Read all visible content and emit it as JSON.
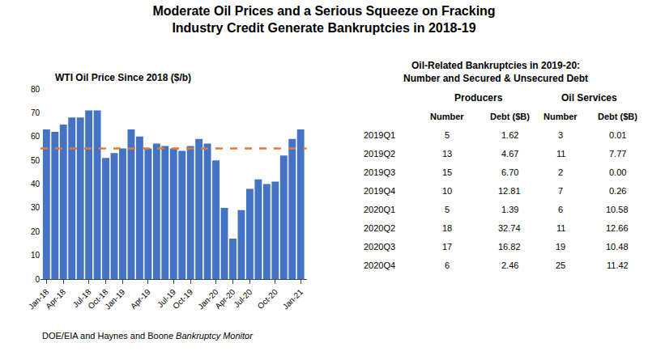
{
  "title": "Moderate Oil Prices and a Serious Squeeze on Fracking\nIndustry Credit Generate Bankruptcies in 2018-19",
  "source": [
    "DOE/EIA and Haynes and Boone",
    "Bankruptcy Monitor"
  ],
  "chart_data": [
    {
      "type": "bar",
      "title": "WTI Oil Price Since 2018 ($/b)",
      "categories": [
        "Jan-18",
        null,
        "Apr-18",
        null,
        null,
        "Jul-18",
        null,
        "Oct-18",
        null,
        "Jan-19",
        null,
        null,
        "Apr-19",
        null,
        null,
        "Jul-19",
        null,
        "Oct-19",
        null,
        null,
        "Jan-20",
        null,
        "Apr-20",
        null,
        "Jul-20",
        null,
        null,
        "Oct-20",
        null,
        null,
        "Jan-21"
      ],
      "values": [
        63,
        62,
        65,
        68,
        68,
        71,
        71,
        51,
        53,
        55,
        63,
        60,
        55,
        57,
        56,
        55,
        54,
        56,
        59,
        57,
        50,
        30,
        17,
        29,
        38,
        42,
        40,
        41,
        52,
        59,
        63
      ],
      "color": "#4472C4",
      "ylim": [
        0,
        80
      ],
      "yticks": [
        0,
        10,
        20,
        30,
        40,
        50,
        60,
        70,
        80
      ],
      "grid": false,
      "reference_line": {
        "value": 55,
        "color": "#E07B39",
        "line_style": "dashed"
      }
    },
    {
      "type": "table",
      "title": "Oil-Related Bankruptcies in 2019-20:\nNumber and Secured & Unsecured Debt",
      "column_groups": [
        null,
        "Producers",
        "Producers",
        "Oil Services",
        "Oil Services"
      ],
      "columns": [
        null,
        "Number",
        "Debt ($B)",
        "Number",
        "Debt ($B)"
      ],
      "rows": [
        [
          "2019Q1",
          "5",
          "1.62",
          "3",
          "0.01"
        ],
        [
          "2019Q2",
          "13",
          "4.67",
          "11",
          "7.77"
        ],
        [
          "2019Q3",
          "15",
          "6.70",
          "2",
          "0.00"
        ],
        [
          "2019Q4",
          "10",
          "12.81",
          "7",
          "0.26"
        ],
        [
          "2020Q1",
          "5",
          "1.39",
          "6",
          "10.58"
        ],
        [
          "2020Q2",
          "18",
          "32.74",
          "11",
          "12.66"
        ],
        [
          "2020Q3",
          "17",
          "16.82",
          "19",
          "10.48"
        ],
        [
          "2020Q4",
          "6",
          "2.46",
          "25",
          "11.42"
        ]
      ]
    }
  ]
}
